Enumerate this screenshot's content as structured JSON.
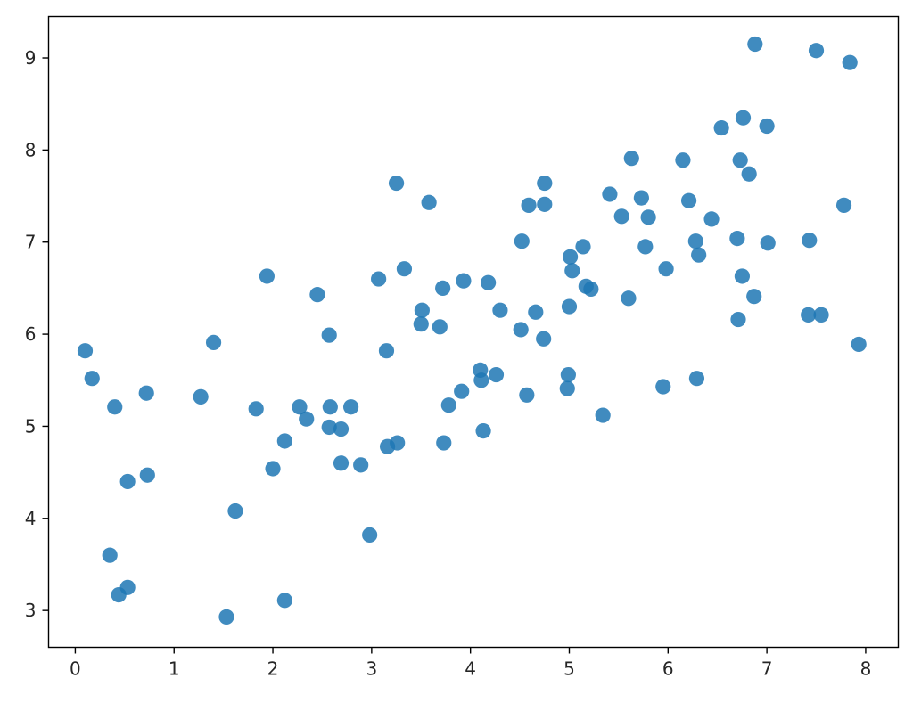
{
  "chart_data": {
    "type": "scatter",
    "title": "",
    "xlabel": "",
    "ylabel": "",
    "xlim": [
      -0.27,
      8.33
    ],
    "ylim": [
      2.6,
      9.45
    ],
    "xticks": [
      0,
      1,
      2,
      3,
      4,
      5,
      6,
      7,
      8
    ],
    "yticks": [
      3,
      4,
      5,
      6,
      7,
      8,
      9
    ],
    "grid": false,
    "legend": "none",
    "color": "#1f77b4",
    "x": [
      0.1,
      0.17,
      0.4,
      0.72,
      0.35,
      0.44,
      0.53,
      0.53,
      0.73,
      1.27,
      1.4,
      1.53,
      1.62,
      1.83,
      1.94,
      2.0,
      2.12,
      2.12,
      2.27,
      2.34,
      2.45,
      2.57,
      2.57,
      2.58,
      2.69,
      2.69,
      2.79,
      2.89,
      2.98,
      3.07,
      3.15,
      3.16,
      3.25,
      3.26,
      3.33,
      3.5,
      3.51,
      3.58,
      3.69,
      3.72,
      3.73,
      3.78,
      3.91,
      3.93,
      4.1,
      4.11,
      4.13,
      4.18,
      4.26,
      4.3,
      4.51,
      4.52,
      4.57,
      4.59,
      4.66,
      4.74,
      4.75,
      4.75,
      4.98,
      4.99,
      5.0,
      5.01,
      5.03,
      5.14,
      5.17,
      5.22,
      5.34,
      5.41,
      5.53,
      5.6,
      5.63,
      5.73,
      5.77,
      5.8,
      5.95,
      5.98,
      6.15,
      6.21,
      6.28,
      6.29,
      6.31,
      6.44,
      6.54,
      6.7,
      6.71,
      6.73,
      6.75,
      6.76,
      6.82,
      6.87,
      6.88,
      7.0,
      7.01,
      7.42,
      7.43,
      7.5,
      7.55,
      7.78,
      7.84,
      7.93
    ],
    "y": [
      5.82,
      5.52,
      5.21,
      5.36,
      3.6,
      3.17,
      3.25,
      4.4,
      4.47,
      5.32,
      5.91,
      2.93,
      4.08,
      5.19,
      6.63,
      4.54,
      4.84,
      3.11,
      5.21,
      5.08,
      6.43,
      5.99,
      4.99,
      5.21,
      4.97,
      4.6,
      5.21,
      4.58,
      3.82,
      6.6,
      5.82,
      4.78,
      7.64,
      4.82,
      6.71,
      6.11,
      6.26,
      7.43,
      6.08,
      6.5,
      4.82,
      5.23,
      5.38,
      6.58,
      5.61,
      5.5,
      4.95,
      6.56,
      5.56,
      6.26,
      6.05,
      7.01,
      5.34,
      7.4,
      6.24,
      5.95,
      7.64,
      7.41,
      5.41,
      5.56,
      6.3,
      6.84,
      6.69,
      6.95,
      6.52,
      6.49,
      5.12,
      7.52,
      7.28,
      6.39,
      7.91,
      7.48,
      6.95,
      7.27,
      5.43,
      6.71,
      7.89,
      7.45,
      7.01,
      5.52,
      6.86,
      7.25,
      8.24,
      7.04,
      6.16,
      7.89,
      6.63,
      8.35,
      7.74,
      6.41,
      9.15,
      8.26,
      6.99,
      6.21,
      7.02,
      9.08,
      6.21,
      7.4,
      8.95,
      5.89
    ]
  }
}
